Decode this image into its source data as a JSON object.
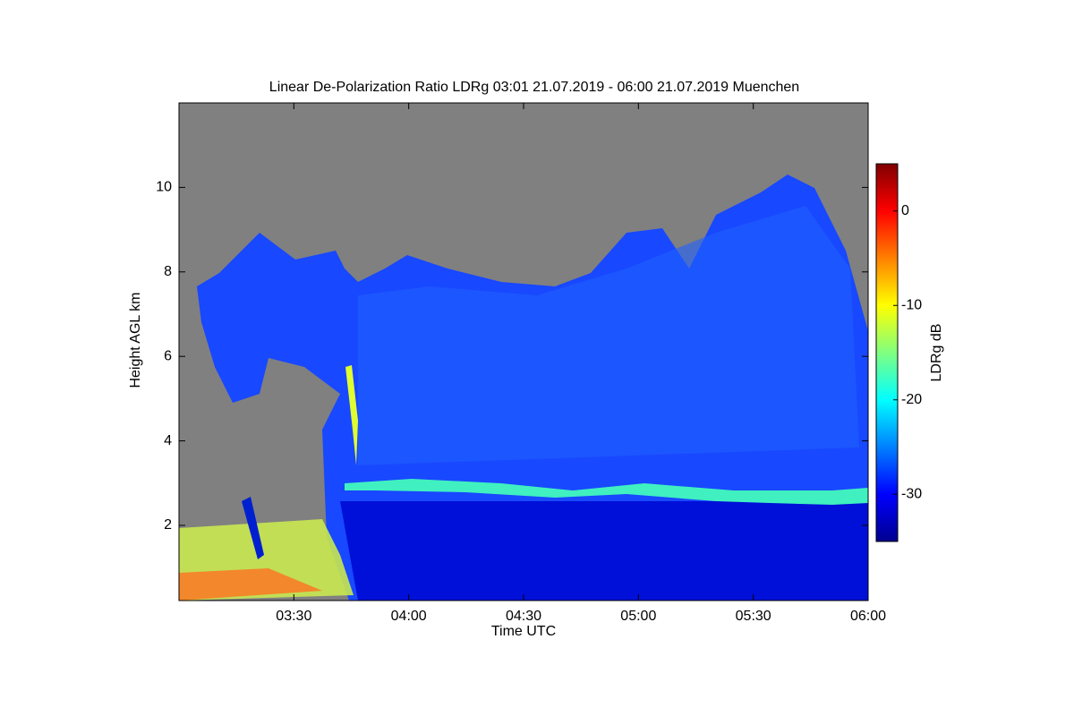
{
  "chart_data": {
    "type": "heatmap",
    "title": "Linear De-Polarization Ratio LDRg   03:01 21.07.2019 - 06:00 21.07.2019 Muenchen",
    "x_label": "Time UTC",
    "y_label": "Height AGL km",
    "colorbar_label": "LDRg dB",
    "xlim": [
      180,
      360
    ],
    "xticks": [
      {
        "value": 210,
        "label": "03:30"
      },
      {
        "value": 240,
        "label": "04:00"
      },
      {
        "value": 270,
        "label": "04:30"
      },
      {
        "value": 300,
        "label": "05:00"
      },
      {
        "value": 330,
        "label": "05:30"
      },
      {
        "value": 360,
        "label": "06:00"
      }
    ],
    "ylim": [
      0.22,
      12
    ],
    "yticks": [
      2,
      4,
      6,
      8,
      10
    ],
    "clim": [
      -35,
      5
    ],
    "cticks": [
      0,
      -10,
      -20,
      -30
    ],
    "colormap": [
      "#00008f",
      "#0000ff",
      "#0080ff",
      "#00ffff",
      "#80ff80",
      "#ffff00",
      "#ff8000",
      "#ff0000",
      "#800000"
    ],
    "missing_color": "#808080"
  }
}
